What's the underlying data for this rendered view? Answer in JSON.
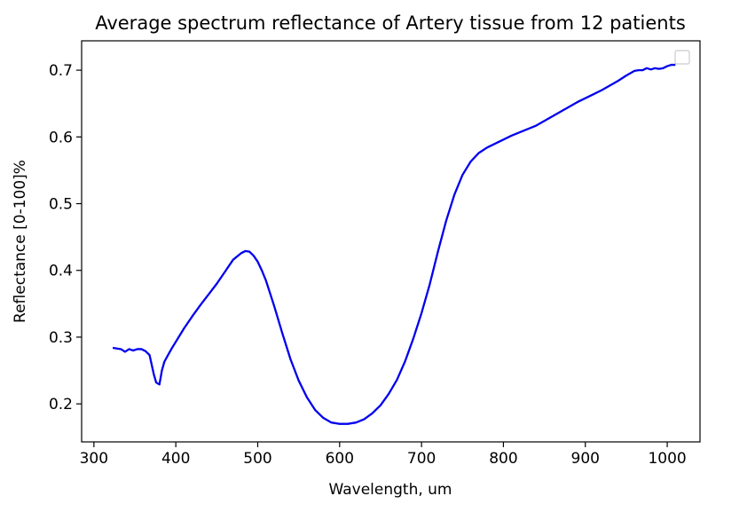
{
  "chart_data": {
    "type": "line",
    "title": "Average spectrum reflectance of Artery tissue from 12 patients",
    "xlabel": "Wavelength, um",
    "ylabel": "Reflectance [0-100]%",
    "xlim": [
      285,
      1040
    ],
    "ylim": [
      0.143,
      0.744
    ],
    "xticks": [
      300,
      400,
      500,
      600,
      700,
      800,
      900,
      1000
    ],
    "yticks": [
      0.2,
      0.3,
      0.4,
      0.5,
      0.6,
      0.7
    ],
    "xtick_labels": [
      "300",
      "400",
      "500",
      "600",
      "700",
      "800",
      "900",
      "1000"
    ],
    "ytick_labels": [
      "0.2",
      "0.3",
      "0.4",
      "0.5",
      "0.6",
      "0.7"
    ],
    "grid": false,
    "legend": {
      "position": "upper right",
      "entries": []
    },
    "series": [
      {
        "color": "#0000ee",
        "x": [
          323,
          328,
          333,
          338,
          343,
          348,
          353,
          358,
          363,
          368,
          373,
          376,
          380,
          383,
          386,
          390,
          395,
          400,
          410,
          420,
          430,
          440,
          450,
          460,
          470,
          480,
          485,
          490,
          495,
          500,
          505,
          510,
          520,
          530,
          540,
          550,
          560,
          570,
          580,
          590,
          600,
          610,
          620,
          630,
          640,
          650,
          660,
          670,
          680,
          690,
          700,
          710,
          720,
          730,
          740,
          750,
          760,
          770,
          780,
          790,
          800,
          810,
          820,
          830,
          840,
          850,
          860,
          870,
          880,
          890,
          900,
          910,
          920,
          930,
          940,
          950,
          960,
          965,
          970,
          975,
          980,
          985,
          990,
          995,
          1000,
          1005,
          1010
        ],
        "y": [
          0.284,
          0.283,
          0.282,
          0.278,
          0.282,
          0.28,
          0.282,
          0.282,
          0.279,
          0.273,
          0.245,
          0.232,
          0.229,
          0.25,
          0.263,
          0.272,
          0.283,
          0.293,
          0.313,
          0.331,
          0.348,
          0.364,
          0.38,
          0.398,
          0.416,
          0.426,
          0.429,
          0.428,
          0.422,
          0.413,
          0.4,
          0.385,
          0.347,
          0.306,
          0.267,
          0.235,
          0.21,
          0.191,
          0.179,
          0.172,
          0.17,
          0.17,
          0.172,
          0.177,
          0.186,
          0.198,
          0.215,
          0.236,
          0.264,
          0.298,
          0.336,
          0.379,
          0.428,
          0.474,
          0.513,
          0.543,
          0.563,
          0.576,
          0.584,
          0.59,
          0.596,
          0.602,
          0.607,
          0.612,
          0.617,
          0.624,
          0.631,
          0.638,
          0.645,
          0.652,
          0.658,
          0.664,
          0.67,
          0.677,
          0.684,
          0.692,
          0.699,
          0.7,
          0.7,
          0.703,
          0.701,
          0.703,
          0.702,
          0.703,
          0.706,
          0.708,
          0.708
        ]
      }
    ]
  }
}
